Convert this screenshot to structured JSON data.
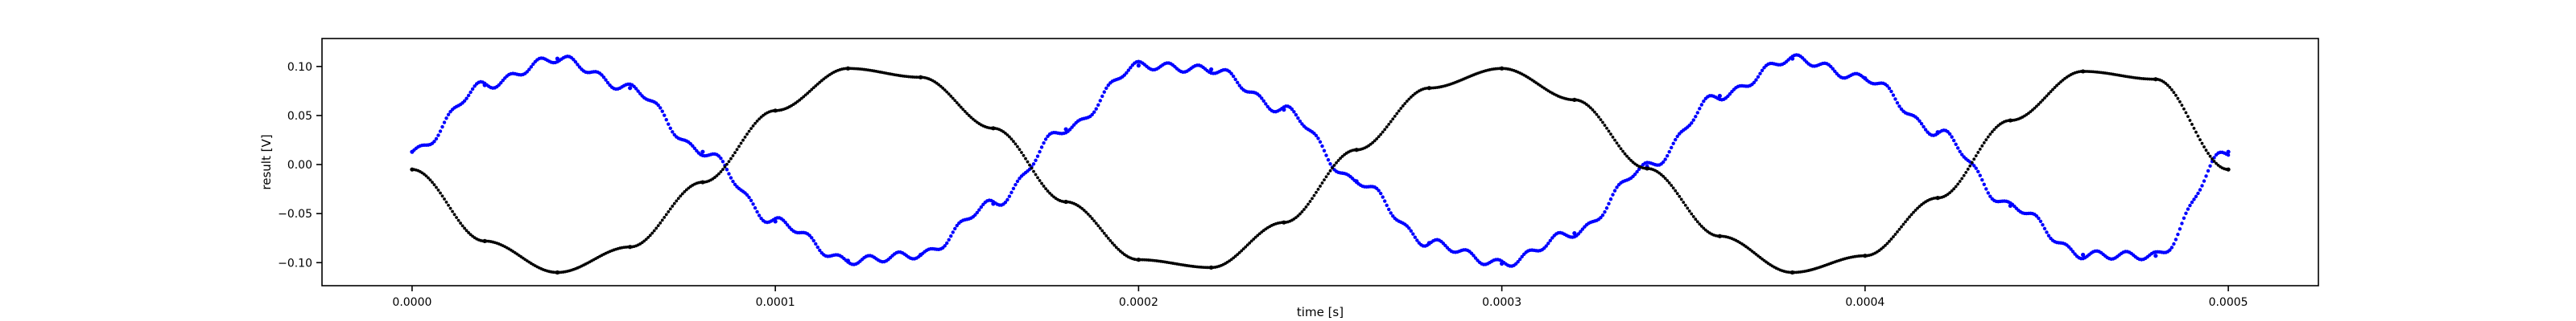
{
  "chart_data": {
    "type": "scatter",
    "title": "",
    "xlabel": "time [s]",
    "ylabel": "result [V]",
    "xlim": [
      -2.48e-05,
      0.0005248
    ],
    "ylim": [
      -0.1235,
      0.1285
    ],
    "xticks": [
      0.0,
      0.0001,
      0.0002,
      0.0003,
      0.0004,
      0.0005
    ],
    "xtick_labels": [
      "0.0000",
      "0.0001",
      "0.0002",
      "0.0003",
      "0.0004",
      "0.0005"
    ],
    "yticks": [
      -0.1,
      -0.05,
      0.0,
      0.05,
      0.1
    ],
    "ytick_labels": [
      "−0.10",
      "−0.05",
      "0.00",
      "0.05",
      "0.10"
    ],
    "grid": false,
    "legend": "none",
    "series": [
      {
        "color": "#0000ff",
        "marker": "dot",
        "x": [
          0.0,
          2e-05,
          4e-05,
          6e-05,
          8e-05,
          0.0001,
          0.00012,
          0.00014,
          0.00016,
          0.00018,
          0.0002,
          0.00022,
          0.00024,
          0.00026,
          0.00028,
          0.0003,
          0.00032,
          0.00034,
          0.00036,
          0.00038,
          0.0004,
          0.00042,
          0.00044,
          0.00046,
          0.00048,
          0.0005
        ],
        "y": [
          0.013,
          0.081,
          0.108,
          0.078,
          0.013,
          -0.058,
          -0.098,
          -0.092,
          -0.04,
          0.036,
          0.101,
          0.097,
          0.056,
          -0.017,
          -0.08,
          -0.101,
          -0.07,
          -0.002,
          0.07,
          0.108,
          0.088,
          0.033,
          -0.042,
          -0.092,
          -0.093,
          0.013
        ]
      },
      {
        "color": "#000000",
        "marker": "dot",
        "x": [
          0.0,
          2e-05,
          4e-05,
          6e-05,
          8e-05,
          0.0001,
          0.00012,
          0.00014,
          0.00016,
          0.00018,
          0.0002,
          0.00022,
          0.00024,
          0.00026,
          0.00028,
          0.0003,
          0.00032,
          0.00034,
          0.00036,
          0.00038,
          0.0004,
          0.00042,
          0.00044,
          0.00046,
          0.00048,
          0.0005
        ],
        "y": [
          -0.005,
          -0.078,
          -0.11,
          -0.084,
          -0.018,
          0.055,
          0.098,
          0.089,
          0.037,
          -0.038,
          -0.097,
          -0.105,
          -0.059,
          0.015,
          0.078,
          0.098,
          0.066,
          -0.004,
          -0.073,
          -0.11,
          -0.093,
          -0.034,
          0.045,
          0.095,
          0.087,
          -0.005
        ]
      }
    ]
  }
}
